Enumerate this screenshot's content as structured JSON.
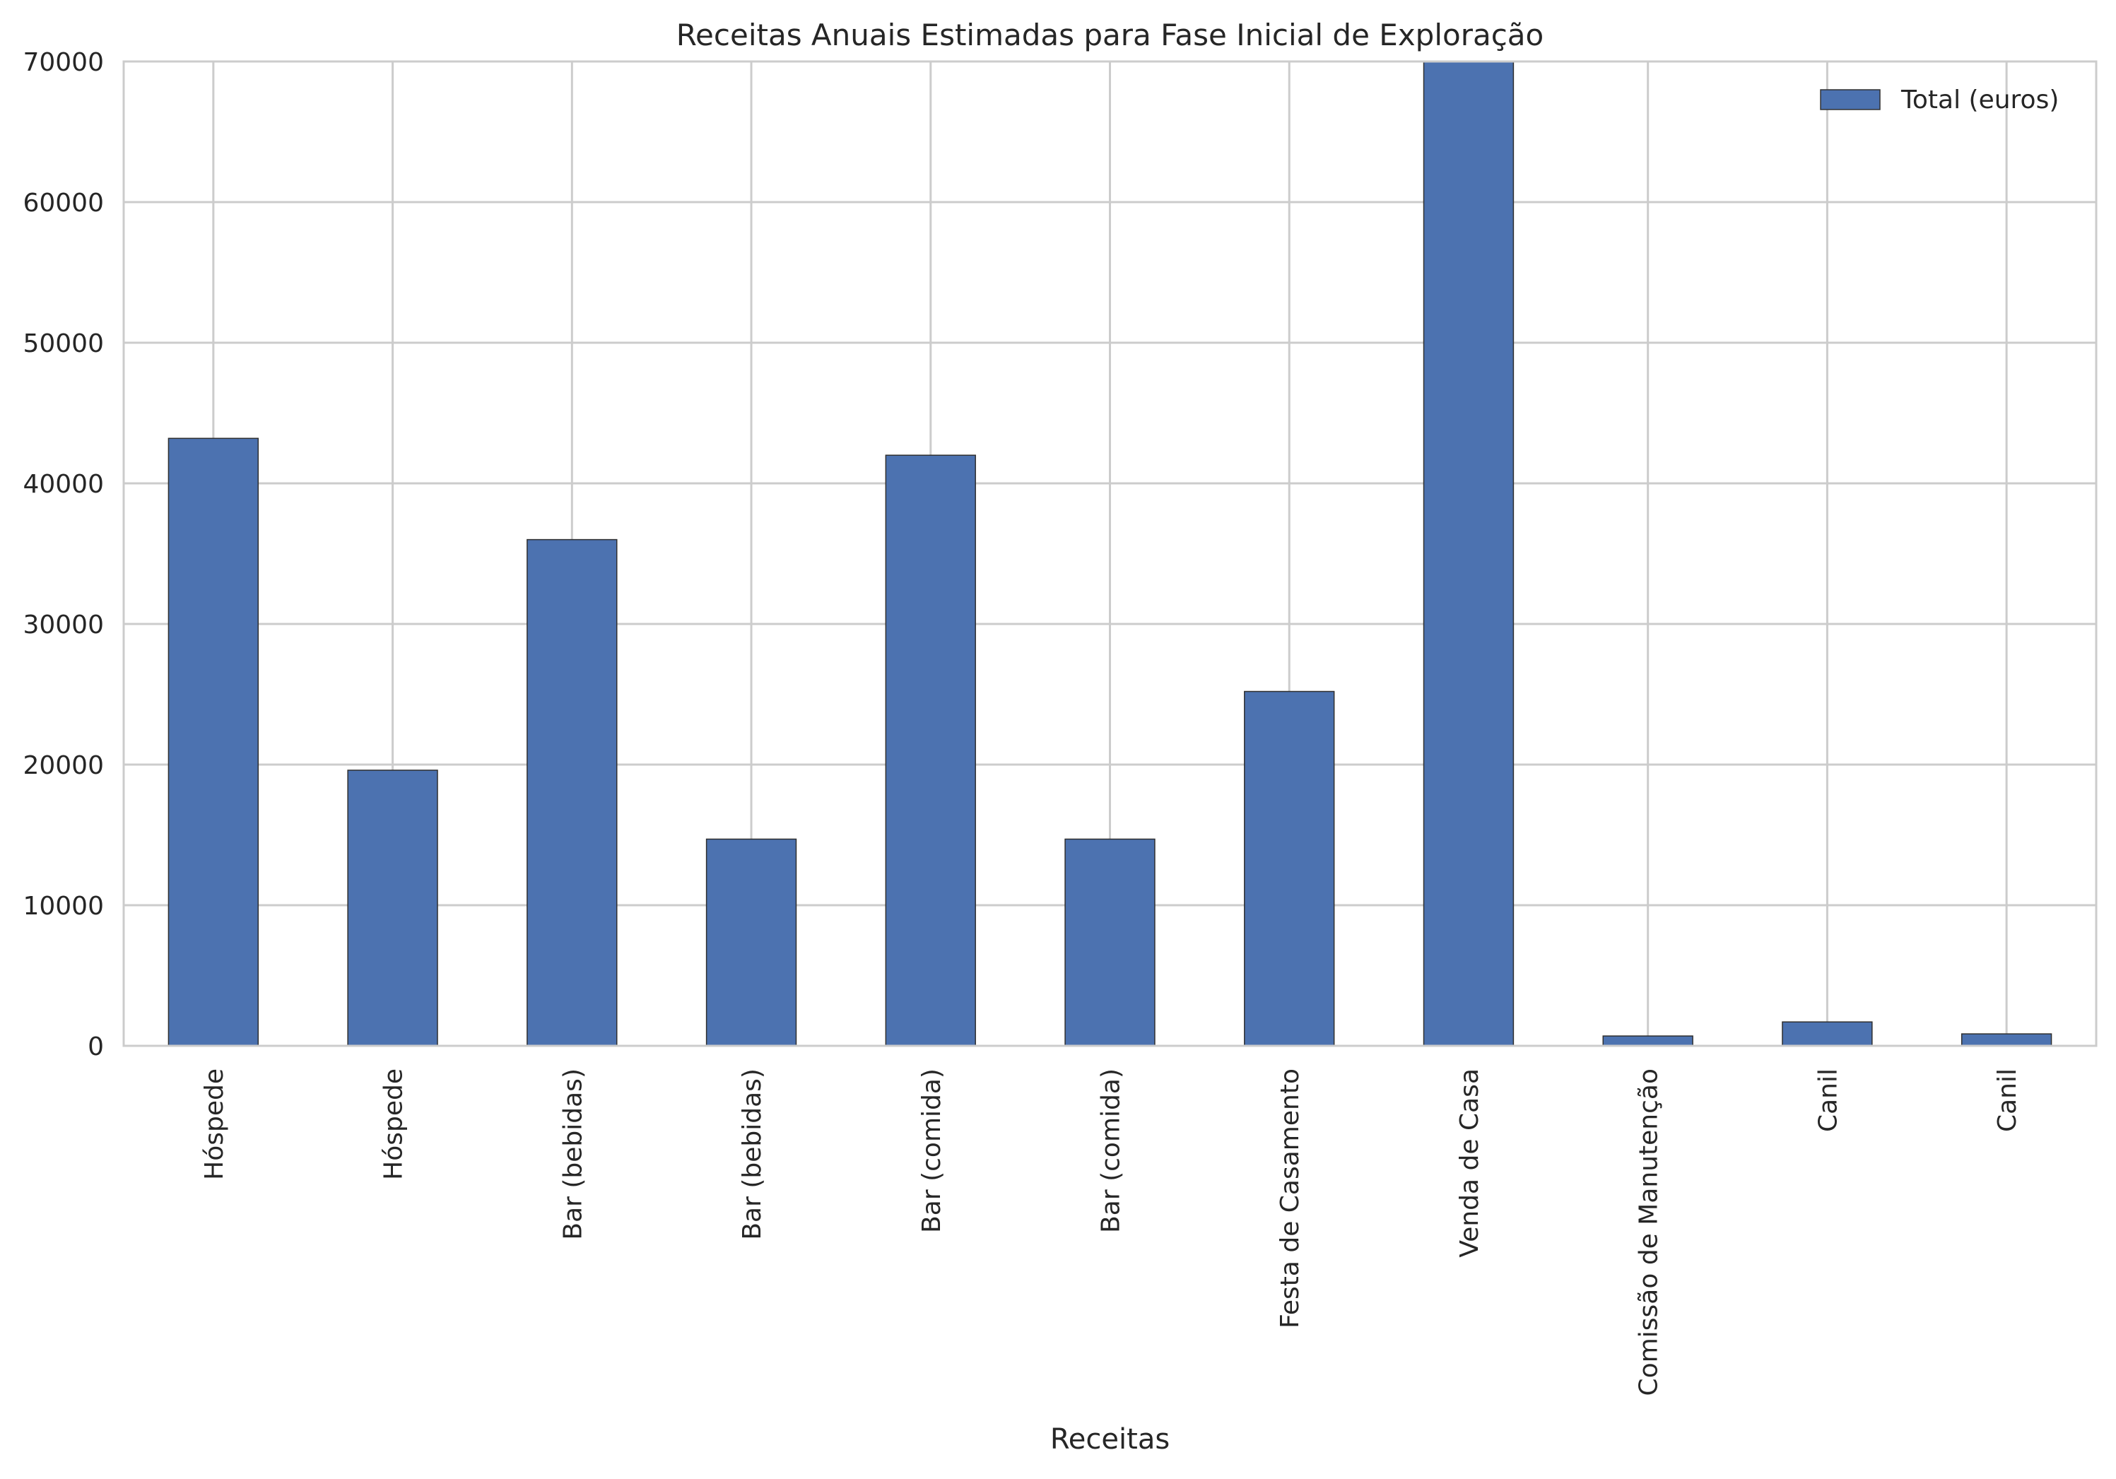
{
  "chart_data": {
    "type": "bar",
    "title": "Receitas Anuais Estimadas para Fase Inicial de Exploração",
    "xlabel": "Receitas",
    "ylabel": "",
    "ylim": [
      0,
      70000
    ],
    "yticks": [
      0,
      10000,
      20000,
      30000,
      40000,
      50000,
      60000,
      70000
    ],
    "grid": true,
    "legend_position": "top-right",
    "categories": [
      "Hóspede",
      "Hóspede",
      "Bar (bebidas)",
      "Bar (bebidas)",
      "Bar (comida)",
      "Bar (comida)",
      "Festa de Casamento",
      "Venda de Casa",
      "Comissão de Manutenção",
      "Canil",
      "Canil"
    ],
    "series": [
      {
        "name": "Total (euros)",
        "color": "#4c72b0",
        "values": [
          43200,
          19600,
          36000,
          14700,
          42000,
          14700,
          25200,
          70000,
          700,
          1700,
          850
        ]
      }
    ]
  }
}
